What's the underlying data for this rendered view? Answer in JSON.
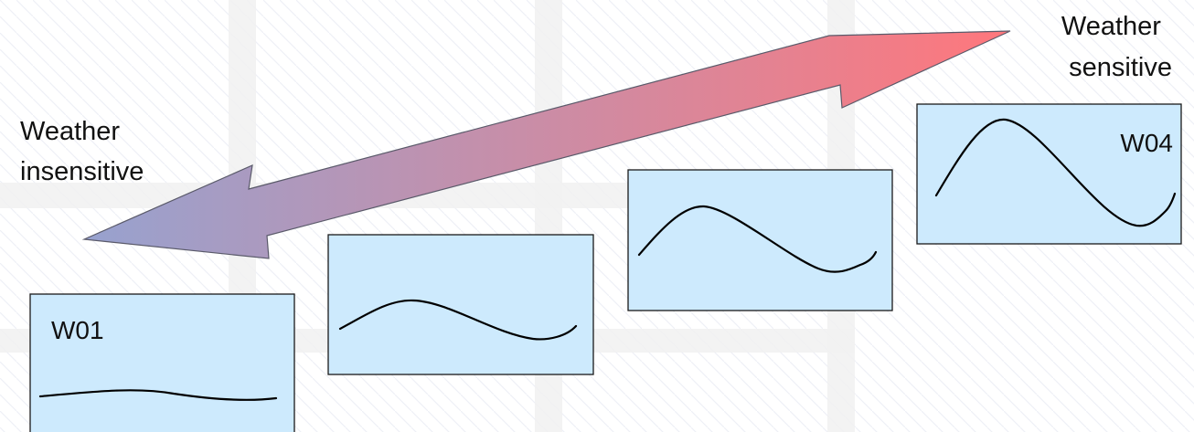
{
  "labels": {
    "insensitive_line1": "Weather",
    "insensitive_line2": "insensitive",
    "sensitive_line1": "Weather",
    "sensitive_line2": "sensitive"
  },
  "panels": [
    {
      "label": "W01"
    },
    {
      "label": ""
    },
    {
      "label": ""
    },
    {
      "label": "W04"
    }
  ],
  "colors": {
    "background": "#ffffff",
    "gridline": "#efefef",
    "hatch": "#eef0f6",
    "panel_fill": "#cdeafd",
    "panel_stroke": "#1a1a1a",
    "curve": "#000000",
    "arrow_start": "#97a2cf",
    "arrow_end": "#ff777c",
    "text": "#111111"
  }
}
